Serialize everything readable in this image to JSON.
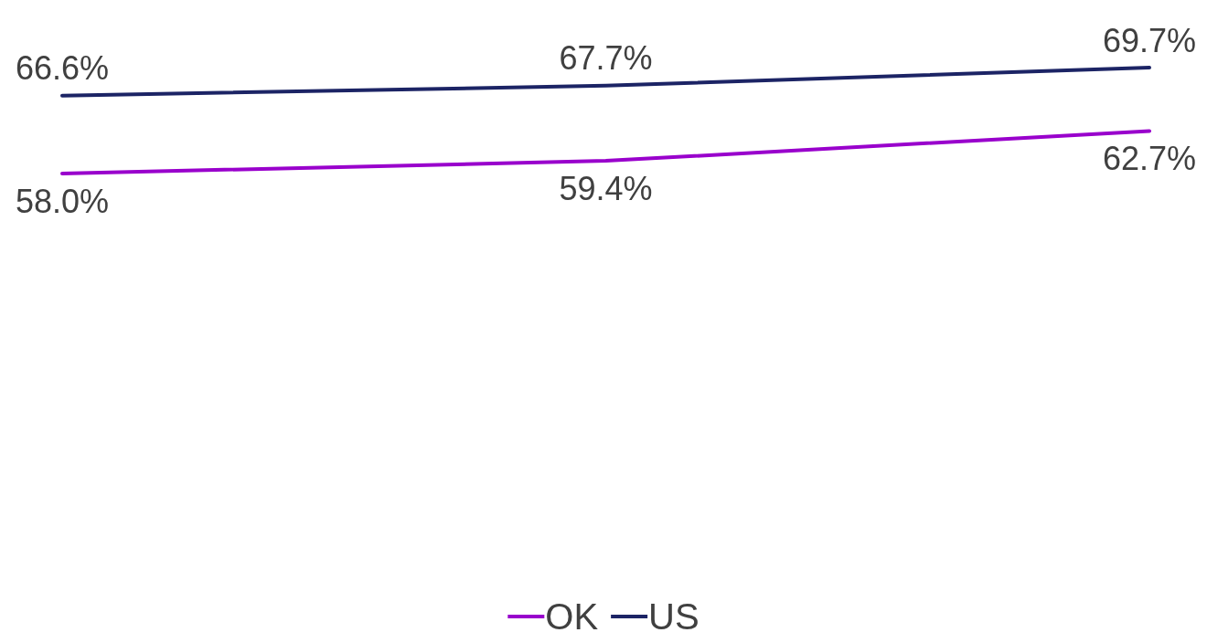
{
  "chart_data": {
    "type": "line",
    "categories": [
      null,
      null,
      null
    ],
    "legend": "bottom",
    "marker": "none",
    "line_style": "solid",
    "grid": false,
    "series": [
      {
        "name": "OK",
        "color": "#9900cc",
        "values": [
          58.0,
          59.4,
          62.7
        ],
        "value_labels": [
          "58.0%",
          "59.4%",
          "62.7%"
        ]
      },
      {
        "name": "US",
        "color": "#1c2465",
        "values": [
          66.6,
          67.7,
          69.7
        ],
        "value_labels": [
          "66.6%",
          "67.7%",
          "69.7%"
        ]
      }
    ]
  }
}
